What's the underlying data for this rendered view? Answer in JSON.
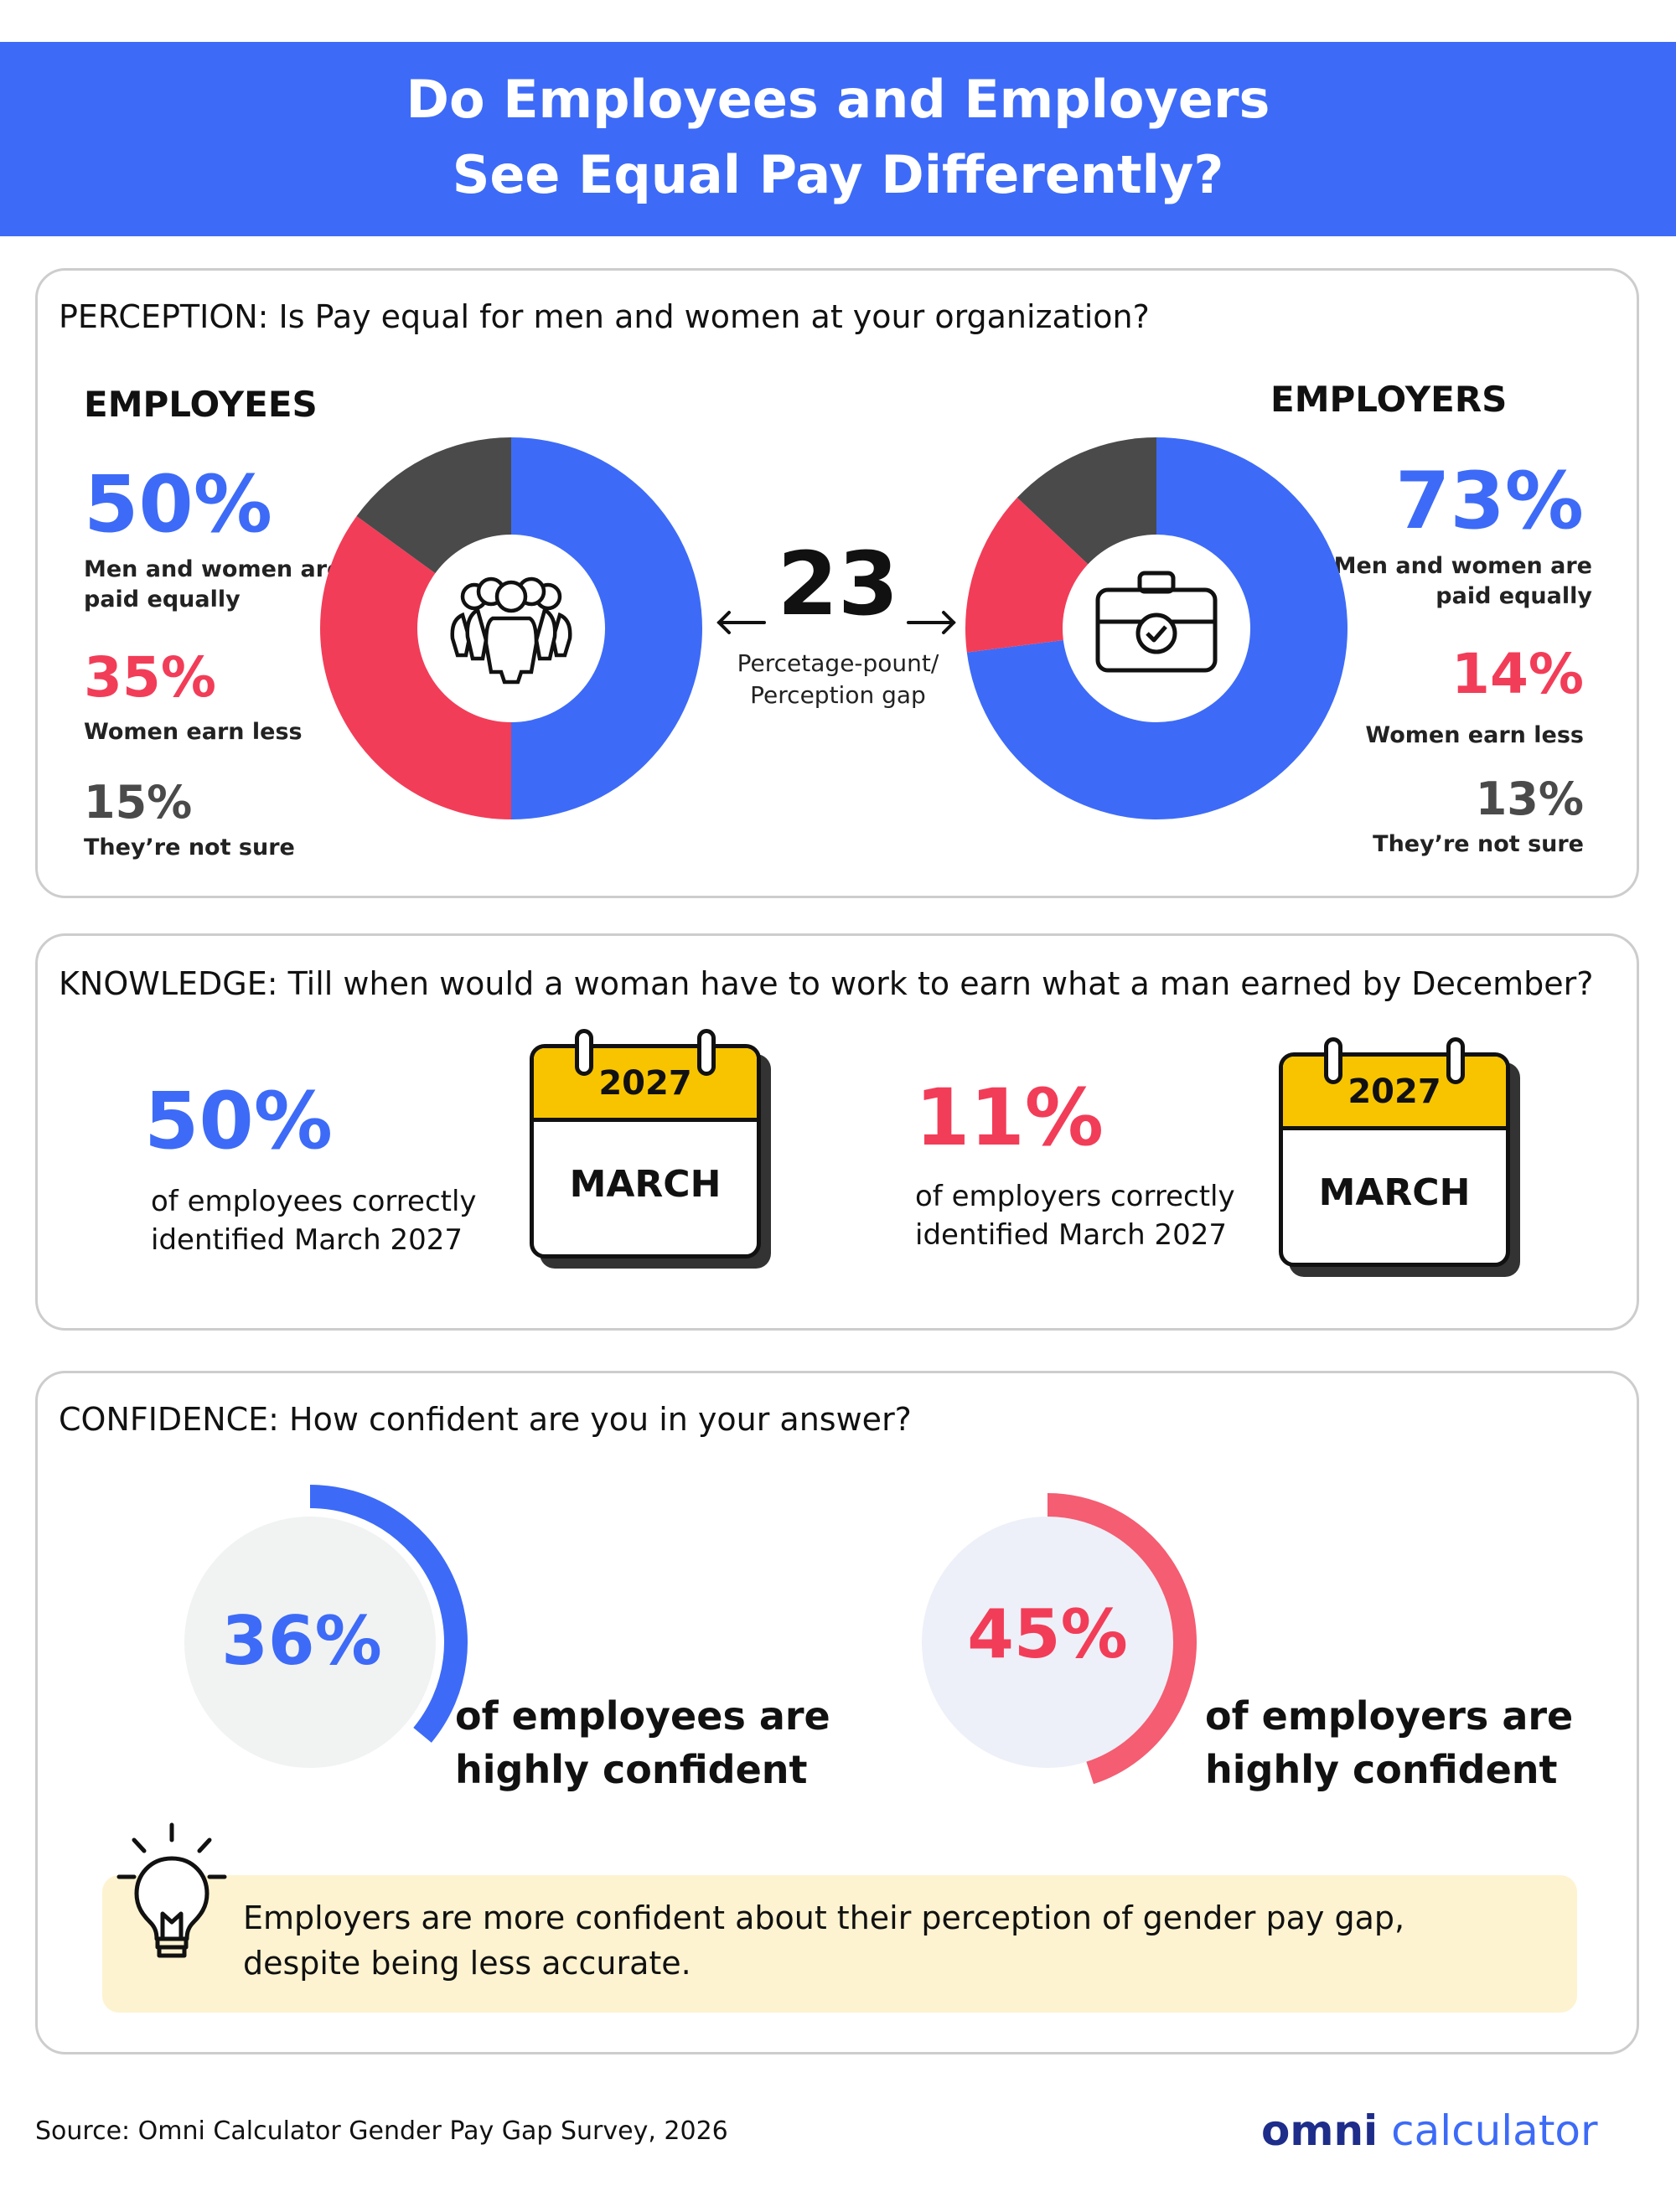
{
  "header": {
    "title_line1": "Do Employees and Employers",
    "title_line2": "See Equal Pay Differently?"
  },
  "perception": {
    "question": "PERCEPTION: Is Pay equal for men and women at your organization?",
    "employees": {
      "label": "EMPLOYEES",
      "equal_pct": "50%",
      "equal_text_1": "Men and women are",
      "equal_text_2": "paid equally",
      "less_pct": "35%",
      "less_text": "Women earn less",
      "unsure_pct": "15%",
      "unsure_text": "They’re not sure",
      "icon": "group-of-people-icon"
    },
    "employers": {
      "label": "EMPLOYERS",
      "equal_pct": "73%",
      "equal_text_1": "Men and women are",
      "equal_text_2": "paid equally",
      "less_pct": "14%",
      "less_text": "Women earn less",
      "unsure_pct": "13%",
      "unsure_text": "They’re not sure",
      "icon": "briefcase-check-icon"
    },
    "gap_value": "23",
    "gap_text_1": "Percetage-pount/",
    "gap_text_2": "Perception gap"
  },
  "chart_data": [
    {
      "type": "pie",
      "donut": true,
      "categories": [
        "Men and women are paid equally",
        "Women earn less",
        "They’re not sure"
      ],
      "values": [
        50,
        35,
        15
      ],
      "colors": [
        "#3d6bf7",
        "#f23d58",
        "#4a4a4a"
      ]
    },
    {
      "type": "pie",
      "donut": true,
      "categories": [
        "Men and women are paid equally",
        "Women earn less",
        "They’re not sure"
      ],
      "values": [
        73,
        14,
        13
      ],
      "colors": [
        "#3d6bf7",
        "#f23d58",
        "#4a4a4a"
      ]
    }
  ],
  "knowledge": {
    "question": "KNOWLEDGE: Till when would a woman have to work to earn what a man earned by December?",
    "employees": {
      "pct": "50%",
      "text_1": "of employees correctly",
      "text_2": "identified March 2027",
      "cal_year": "2027",
      "cal_month": "MARCH"
    },
    "employers": {
      "pct": "11%",
      "text_1": "of employers correctly",
      "text_2": "identified March 2027",
      "cal_year": "2027",
      "cal_month": "MARCH"
    }
  },
  "confidence": {
    "question": "CONFIDENCE: How confident are you in your answer?",
    "employees": {
      "pct": "36%",
      "value": 36,
      "text_1": "of employees are",
      "text_2": "highly confident"
    },
    "employers": {
      "pct": "45%",
      "value": 45,
      "text_1": "of employers are",
      "text_2": "highly confident"
    },
    "insight_1": "Employers are more confident about their perception of gender pay gap,",
    "insight_2": "despite being less accurate."
  },
  "footer": {
    "source": "Source: Omni Calculator Gender Pay Gap Survey, 2026",
    "logo_omni": "omni",
    "logo_calc": "calculator"
  },
  "colors": {
    "blue": "#3d6bf7",
    "red": "#f23d58",
    "dark_grey": "#4a4a4a",
    "calendar_yellow": "#f8c400",
    "tip_background": "#fdf3d0"
  }
}
